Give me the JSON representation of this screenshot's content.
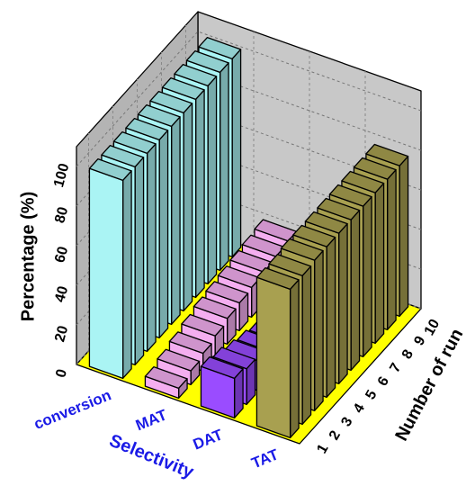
{
  "chart_data": {
    "type": "bar3d",
    "ylabel": "Percentage (%)",
    "xlabel": "Selectivity",
    "zlabel": "Number of run",
    "x": [
      1,
      2,
      3,
      4,
      5,
      6,
      7,
      8,
      9,
      10
    ],
    "series": [
      {
        "name": "conversion",
        "color": "#aaf4f4",
        "values": [
          100,
          100,
          100,
          100,
          100,
          100,
          100,
          100,
          100,
          100
        ]
      },
      {
        "name": "MAT",
        "color": "#f4aef0",
        "values": [
          5,
          7,
          9,
          11,
          13,
          14,
          15,
          16,
          17,
          18
        ]
      },
      {
        "name": "DAT",
        "color": "#9a4cff",
        "values": [
          20,
          18,
          15,
          13,
          11,
          10,
          9,
          8,
          7,
          6
        ]
      },
      {
        "name": "TAT",
        "color": "#a8a050",
        "values": [
          75,
          75,
          76,
          76,
          76,
          76,
          76,
          76,
          76,
          76
        ]
      }
    ],
    "ylim": [
      0,
      110
    ],
    "yticks": [
      0,
      20,
      40,
      60,
      80,
      100
    ],
    "grid": true
  }
}
